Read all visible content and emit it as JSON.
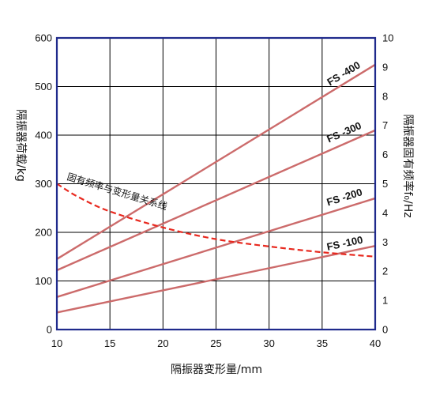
{
  "chart_data": {
    "type": "line",
    "title": "",
    "xlabel": "隔振器变形量/mm",
    "ylabel_left": "隔振器荷载/kg",
    "ylabel_right": "隔振器固有频率f₀/Hz",
    "xlim": [
      10,
      40
    ],
    "ylim_left": [
      0,
      600
    ],
    "ylim_right": [
      0,
      10
    ],
    "x_ticks": [
      "10",
      "15",
      "20",
      "25",
      "30",
      "35",
      "40"
    ],
    "y_ticks_left": [
      "0",
      "100",
      "200",
      "300",
      "400",
      "500",
      "600"
    ],
    "y_ticks_right": [
      "0",
      "1",
      "2",
      "3",
      "4",
      "5",
      "6",
      "7",
      "8",
      "9",
      "10"
    ],
    "grid": true,
    "colors": {
      "frame": "#1f2a8c",
      "grid": "#000000",
      "series": "#cc6b6b",
      "frequency_curve": "#e8281e"
    },
    "series": [
      {
        "name": "FS -400",
        "axis": "left",
        "x": [
          10,
          40
        ],
        "y": [
          145,
          545
        ]
      },
      {
        "name": "FS -300",
        "axis": "left",
        "x": [
          10,
          40
        ],
        "y": [
          122,
          410
        ]
      },
      {
        "name": "FS -200",
        "axis": "left",
        "x": [
          10,
          40
        ],
        "y": [
          67,
          270
        ]
      },
      {
        "name": "FS -100",
        "axis": "left",
        "x": [
          10,
          40
        ],
        "y": [
          35,
          172
        ]
      }
    ],
    "frequency_curve": {
      "name": "固有频率与变形量关系线",
      "axis": "right",
      "style": "dashed",
      "x": [
        10,
        12,
        15,
        20,
        25,
        30,
        35,
        40
      ],
      "y": [
        5.0,
        4.55,
        4.05,
        3.5,
        3.1,
        2.85,
        2.65,
        2.5
      ]
    }
  }
}
